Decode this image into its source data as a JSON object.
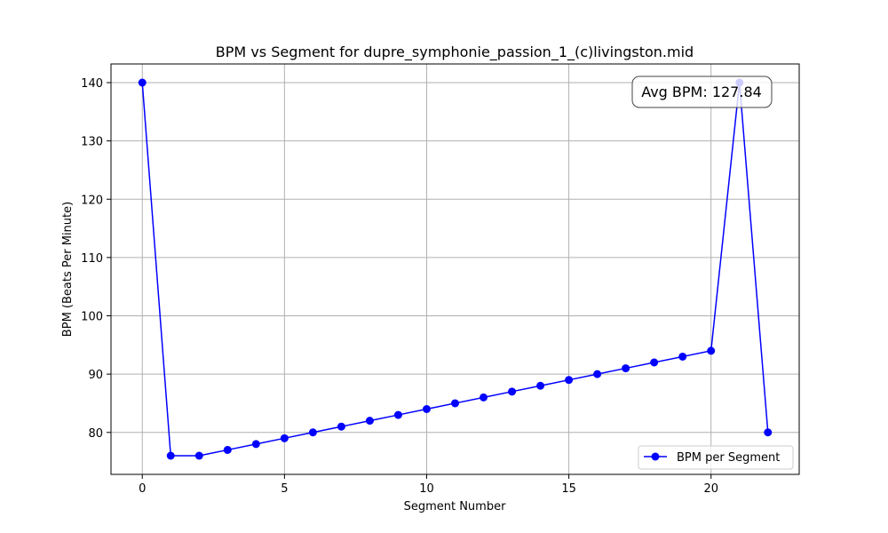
{
  "chart_data": {
    "type": "line",
    "title": "BPM vs Segment for dupre_symphonie_passion_1_(c)livingston.mid",
    "xlabel": "Segment Number",
    "ylabel": "BPM (Beats Per Minute)",
    "xlim": [
      -1.1,
      23.1
    ],
    "ylim": [
      72.8,
      143.2
    ],
    "xticks": [
      0,
      5,
      10,
      15,
      20
    ],
    "yticks": [
      80,
      90,
      100,
      110,
      120,
      130,
      140
    ],
    "grid": true,
    "legend_position": "lower-right",
    "series": [
      {
        "name": "BPM per Segment",
        "color": "#0000ff",
        "marker": "circle",
        "x": [
          0,
          1,
          2,
          3,
          4,
          5,
          6,
          7,
          8,
          9,
          10,
          11,
          12,
          13,
          14,
          15,
          16,
          17,
          18,
          19,
          20,
          21,
          22
        ],
        "y": [
          140,
          76,
          76,
          77,
          78,
          79,
          80,
          81,
          82,
          83,
          84,
          85,
          86,
          87,
          88,
          89,
          90,
          91,
          92,
          93,
          94,
          140,
          80
        ]
      }
    ],
    "annotation": {
      "text": "Avg BPM: 127.84",
      "position": "top-right"
    }
  }
}
